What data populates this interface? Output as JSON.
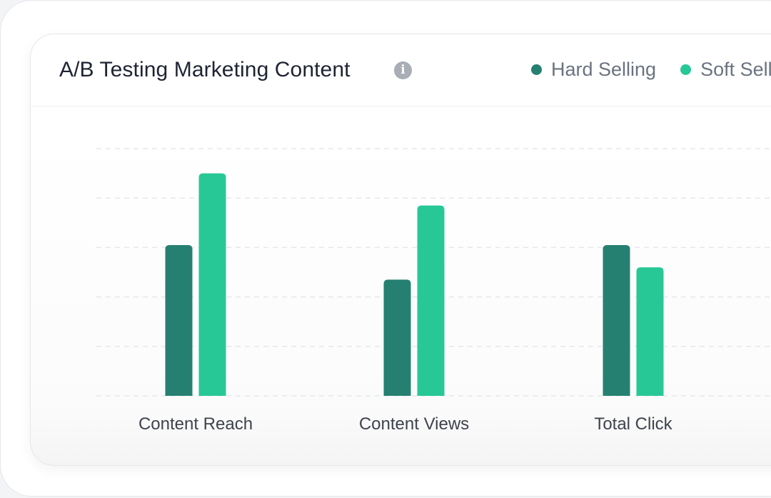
{
  "card": {
    "title": "A/B Testing Marketing Content",
    "info_icon": "info-icon",
    "info_glyph": "i"
  },
  "chart_data": {
    "type": "bar",
    "title": "A/B Testing Marketing Content",
    "categories": [
      "Content Reach",
      "Content Views",
      "Total Click"
    ],
    "series": [
      {
        "name": "Hard Selling",
        "values": [
          61,
          47,
          61
        ],
        "color": "#268071"
      },
      {
        "name": "Soft Selling",
        "values": [
          90,
          77,
          52
        ],
        "color": "#27c896"
      }
    ],
    "ylim": [
      0,
      100
    ],
    "grid": true,
    "legend": "top-right",
    "xlabel": "",
    "ylabel": ""
  }
}
